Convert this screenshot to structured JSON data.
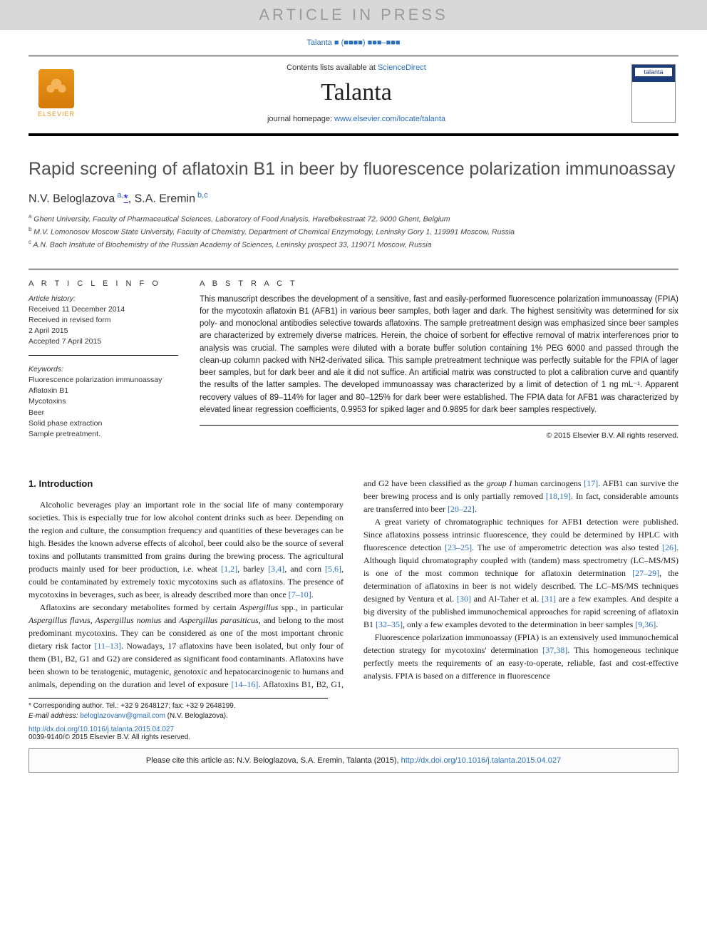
{
  "banner": {
    "text": "ARTICLE IN PRESS"
  },
  "citation_top": "Talanta ■ (■■■■) ■■■–■■■",
  "masthead": {
    "contents_prefix": "Contents lists available at ",
    "contents_link": "ScienceDirect",
    "journal": "Talanta",
    "homepage_prefix": "journal homepage: ",
    "homepage_link": "www.elsevier.com/locate/talanta",
    "publisher_label": "ELSEVIER",
    "cover_brand": "talanta"
  },
  "article": {
    "title": "Rapid screening of aflatoxin B1 in beer by fluorescence polarization immunoassay",
    "author_html": "N.V. Beloglazova <sup>a,</sup>*, S.A. Eremin <sup>b,c</sup>",
    "affiliations": [
      "a Ghent University, Faculty of Pharmaceutical Sciences, Laboratory of Food Analysis, Harelbekestraat 72, 9000 Ghent, Belgium",
      "b M.V. Lomonosov Moscow State University, Faculty of Chemistry, Department of Chemical Enzymology, Leninsky Gory 1, 119991 Moscow, Russia",
      "c A.N. Bach Institute of Biochemistry of the Russian Academy of Sciences, Leninsky prospect 33, 119071 Moscow, Russia"
    ]
  },
  "info": {
    "heading": "A R T I C L E  I N F O",
    "history_label": "Article history:",
    "history": [
      "Received 11 December 2014",
      "Received in revised form",
      "2 April 2015",
      "Accepted 7 April 2015"
    ],
    "keywords_label": "Keywords:",
    "keywords": [
      "Fluorescence polarization immunoassay",
      "Aflatoxin B1",
      "Mycotoxins",
      "Beer",
      "Solid phase extraction",
      "Sample pretreatment."
    ]
  },
  "abstract": {
    "heading": "A B S T R A C T",
    "text": "This manuscript describes the development of a sensitive, fast and easily-performed fluorescence polarization immunoassay (FPIA) for the mycotoxin aflatoxin B1 (AFB1) in various beer samples, both lager and dark. The highest sensitivity was determined for six poly- and monoclonal antibodies selective towards aflatoxins. The sample pretreatment design was emphasized since beer samples are characterized by extremely diverse matrices. Herein, the choice of sorbent for effective removal of matrix interferences prior to analysis was crucial. The samples were diluted with a borate buffer solution containing 1% PEG 6000 and passed through the clean-up column packed with NH2-derivated silica. This sample pretreatment technique was perfectly suitable for the FPIA of lager beer samples, but for dark beer and ale it did not suffice. An artificial matrix was constructed to plot a calibration curve and quantify the results of the latter samples. The developed immunoassay was characterized by a limit of detection of 1 ng mL⁻¹. Apparent recovery values of 89–114% for lager and 80–125% for dark beer were established. The FPIA data for AFB1 was characterized by elevated linear regression coefficients, 0.9953 for spiked lager and 0.9895 for dark beer samples respectively.",
    "copyright": "© 2015 Elsevier B.V. All rights reserved."
  },
  "body": {
    "section_heading": "1.  Introduction"
  },
  "footnotes": {
    "corr": "* Corresponding author. Tel.: +32 9 2648127; fax: +32 9 2648199.",
    "email_label": "E-mail address: ",
    "email": "beloglazovanv@gmail.com",
    "email_suffix": " (N.V. Beloglazova)."
  },
  "bottom": {
    "doi": "http://dx.doi.org/10.1016/j.talanta.2015.04.027",
    "issn_line": "0039-9140/© 2015 Elsevier B.V. All rights reserved."
  },
  "citebox": {
    "prefix": "Please cite this article as: N.V. Beloglazova, S.A. Eremin, Talanta (2015), ",
    "link": "http://dx.doi.org/10.1016/j.talanta.2015.04.027"
  },
  "colors": {
    "link": "#2a6ebb",
    "banner_bg": "#d8d8d8",
    "banner_fg": "#9a9a9a",
    "elsevier_orange": "#e8941a",
    "title_gray": "#505050"
  }
}
